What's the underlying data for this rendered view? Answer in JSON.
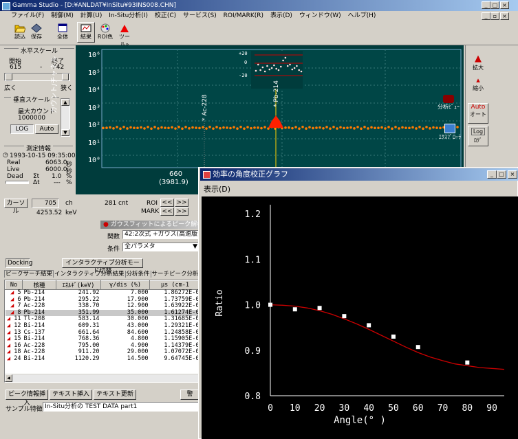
{
  "main_window": {
    "title": "Gamma Studio - [D:¥ANLDAT¥InSitu¥93INS008.CHN]",
    "menu": [
      "ファイル(F)",
      "制御(M)",
      "計算(U)",
      "In-Situ分析(I)",
      "校正(C)",
      "サービス(S)",
      "ROI/MARK(R)",
      "表示(D)",
      "ウィンドウ(W)",
      "ヘルプ(H)"
    ],
    "toolbar": [
      "読込",
      "保存",
      "全体",
      "結果",
      "ROI色",
      "ツール»"
    ]
  },
  "left_panel": {
    "horizontal_scale": {
      "title": "水平スケール",
      "start_label": "開始",
      "end_label": "終了",
      "start": "615",
      "dash": "-",
      "end": "742",
      "wide": "広く",
      "narrow": "狭く"
    },
    "vertical_scale": {
      "title": "垂直スケール",
      "max_count_label": "最大カウント",
      "max_count": "1000000",
      "log": "LOG",
      "auto": "Auto"
    },
    "measurement": {
      "title": "測定情報",
      "datetime": "1993-10-15 09:35:00",
      "rows": [
        {
          "label": "Real",
          "value": "6063.0",
          "unit": "秒"
        },
        {
          "label": "Live",
          "value": "6000.0",
          "unit": "秒"
        },
        {
          "label": "Dead",
          "sym": "Σt",
          "value": "1.0",
          "unit": "%"
        },
        {
          "label": "",
          "sym": "Δt",
          "value": "---",
          "unit": "%"
        }
      ]
    }
  },
  "spectrum": {
    "ylabel": "カウント/チャネル",
    "yticks": [
      "10⁶",
      "10⁵",
      "10⁴",
      "10³",
      "10²",
      "10¹",
      "10⁰"
    ],
    "xtick_channel": "660",
    "xtick_energy": "(3981.9)",
    "peak_labels": [
      "* Ac-228",
      "* Pb-214"
    ],
    "inset_ticks": [
      "+20",
      "0",
      "-20"
    ]
  },
  "right_toolbar": [
    "拡大",
    "縮小",
    "分析ﾋﾞｭｰ",
    "オート",
    "ﾛｸﾞ",
    "ｴｸｽﾌﾟﾛｰﾗ"
  ],
  "cursor_bar": {
    "label": "カーソル",
    "channel": "705",
    "ch_unit": "ch",
    "energy": "4253.52",
    "kev_unit": "keV",
    "count": "281",
    "cnt_unit": "cnt",
    "roi": "ROI",
    "mark": "MARK",
    "prev": "<<",
    "next": ">>"
  },
  "analysis": {
    "header": "ガウスフィットによるピーク解析",
    "func_label": "関数",
    "func_value": "42:2次式 +ガウス(高速版)",
    "cond_label": "条件",
    "cond_value": "全パラメタ"
  },
  "docking": {
    "label": "Docking",
    "mode_button": "インタラクティブ分析モード切替"
  },
  "tabs": [
    "ピークサーチ結果",
    "インタラクティブ分析結果",
    "分析条件",
    "サーチピーク分析結果"
  ],
  "nuclide_table": {
    "headers": [
      "No",
      "核種",
      "ｴﾈﾙｷﾞ(keV)",
      "γ/dis (%)",
      "μs (cm-1"
    ],
    "rows": [
      [
        "5",
        "Pb-214",
        "241.92",
        "7.000",
        "1.86272E-0"
      ],
      [
        "6",
        "Pb-214",
        "295.22",
        "17.900",
        "1.73759E-0"
      ],
      [
        "7",
        "Ac-228",
        "338.70",
        "12.900",
        "1.63922E-0"
      ],
      [
        "8",
        "Pb-214",
        "351.99",
        "35.000",
        "1.61274E-0"
      ],
      [
        "11",
        "Tl-208",
        "583.14",
        "30.000",
        "1.31685E-0"
      ],
      [
        "12",
        "Bi-214",
        "609.31",
        "43.000",
        "1.29321E-0"
      ],
      [
        "13",
        "Cs-137",
        "661.64",
        "84.600",
        "1.24858E-0"
      ],
      [
        "15",
        "Bi-214",
        "768.36",
        "4.800",
        "1.15905E-0"
      ],
      [
        "16",
        "Ac-228",
        "795.00",
        "4.900",
        "1.14379E-0"
      ],
      [
        "18",
        "Ac-228",
        "911.20",
        "29.000",
        "1.07072E-0"
      ],
      [
        "24",
        "Bi-214",
        "1120.29",
        "14.500",
        "9.64745E-0"
      ]
    ],
    "selected_row": 3
  },
  "bottom_buttons": [
    "ピーク情報挿入",
    "テキスト挿入",
    "テキスト更新",
    "警"
  ],
  "sample_label": "サンプル特徴",
  "sample_value": "In-Situ分析の TEST DATA part1",
  "graph_window": {
    "title": "効率の角度校正グラフ",
    "menu": "表示(D)",
    "colors": {
      "bg": "#000000",
      "curve": "#cc0000",
      "marker": "#ffffff",
      "axis": "#ffffff"
    }
  },
  "chart_data": {
    "type": "scatter",
    "title": "",
    "xlabel": "Angle(° )",
    "ylabel": "Ratio",
    "xlim": [
      0,
      95
    ],
    "ylim": [
      0.8,
      1.22
    ],
    "xticks": [
      "0",
      "10",
      "20",
      "30",
      "40",
      "50",
      "60",
      "70",
      "80",
      "90"
    ],
    "yticks": [
      "1.2",
      "1.1",
      "1.0",
      "0.9",
      "0.8"
    ],
    "points": {
      "x": [
        0,
        10,
        20,
        30,
        40,
        50,
        60,
        80
      ],
      "y": [
        1.0,
        0.99,
        0.993,
        0.975,
        0.955,
        0.93,
        0.907,
        0.873
      ]
    },
    "fit_curve": {
      "x": [
        0,
        5,
        10,
        15,
        20,
        25,
        30,
        35,
        40,
        45,
        50,
        55,
        60,
        65,
        70,
        75,
        80,
        85,
        90,
        95
      ],
      "y": [
        1.0,
        0.999,
        0.997,
        0.993,
        0.987,
        0.979,
        0.969,
        0.958,
        0.946,
        0.933,
        0.92,
        0.907,
        0.895,
        0.885,
        0.877,
        0.87,
        0.866,
        0.862,
        0.86,
        0.858
      ]
    },
    "grid": false
  }
}
